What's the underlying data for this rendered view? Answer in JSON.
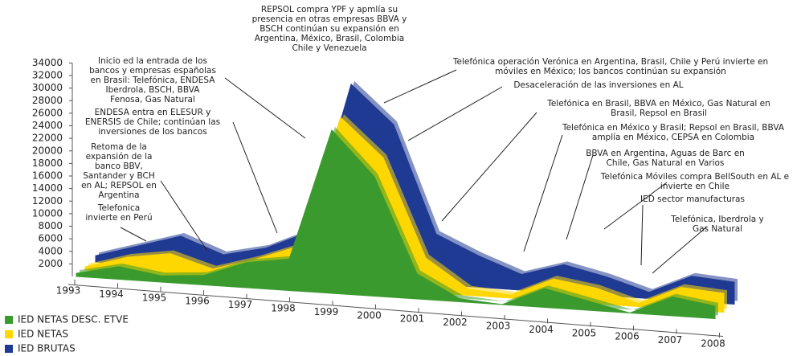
{
  "chart_data": {
    "type": "area3d",
    "categories": [
      "1993",
      "1994",
      "1995",
      "1996",
      "1997",
      "1998",
      "1999",
      "2000",
      "2001",
      "2002",
      "2003",
      "2004",
      "2005",
      "2006",
      "2007",
      "2008"
    ],
    "series": [
      {
        "name": "IED BRUTAS",
        "color": "#1f3a93",
        "values": [
          1000,
          3000,
          5000,
          2500,
          4000,
          7000,
          31000,
          25000,
          8000,
          5000,
          2500,
          4500,
          3000,
          1000,
          4000,
          3500
        ]
      },
      {
        "name": "IED NETAS",
        "color": "#ffd700",
        "values": [
          500,
          2500,
          3500,
          1500,
          3500,
          6000,
          27000,
          21000,
          5500,
          1000,
          500,
          3500,
          2500,
          500,
          3500,
          3000
        ]
      },
      {
        "name": "IED NETAS DESC. ETVE",
        "color": "#3a9a2e",
        "values": [
          500,
          2000,
          1000,
          1500,
          4000,
          5000,
          26000,
          19000,
          4000,
          500,
          0,
          3000,
          1500,
          0,
          3000,
          2000
        ]
      }
    ],
    "ylim": [
      0,
      34000
    ],
    "yticks": [
      2000,
      4000,
      6000,
      8000,
      10000,
      12000,
      14000,
      16000,
      18000,
      20000,
      22000,
      24000,
      26000,
      28000,
      30000,
      32000,
      34000
    ],
    "annotations": [
      [
        "REPSOL compra YPF y apmlía su",
        "presencia en otras empresas BBVA y",
        "BSCH continúan su expansión en",
        "Argentina, México, Brasil, Colombia",
        "Chile y Venezuela"
      ],
      [
        "Inicio ed la entrada de los",
        "bancos y empresas españolas",
        "en Brasil: Telefónica, ENDESA",
        "Iberdrola, BSCH, BBVA",
        "Fenosa, Gas Natural"
      ],
      [
        "ENDESA entra en ELESUR y",
        "ENERSIS de Chile; continúan las",
        "inversiones de los bancos"
      ],
      [
        "Retoma de la",
        "expansión de la",
        "banco BBV,",
        "Santander y BCH",
        "en AL; REPSOL en",
        "Argentina"
      ],
      [
        "Telefonica",
        "invierte en Perú"
      ],
      [
        "Telefónica operación Verónica en Argentina, Brasil, Chile y Perú invierte en",
        "móviles en México; los bancos continúan su expansión"
      ],
      [
        "Desaceleración de las inversiones en AL"
      ],
      [
        "Telefónica en Brasil, BBVA en México, Gas Natural en",
        "Brasil, Repsol en Brasil"
      ],
      [
        "Telefónica en México y Brasil; Repsol en Brasil, BBVA",
        "amplía en México, CEPSA en Colombia"
      ],
      [
        "BBVA en Argentina, Aguas de Barc en",
        "Chile, Gas Natural en Varios"
      ],
      [
        "Telefónica Móviles compra BellSouth en AL e",
        "invierte en Chile"
      ],
      [
        "IED sector manufacturas"
      ],
      [
        "Telefónica, Iberdrola y",
        "Gas Natural"
      ]
    ]
  }
}
